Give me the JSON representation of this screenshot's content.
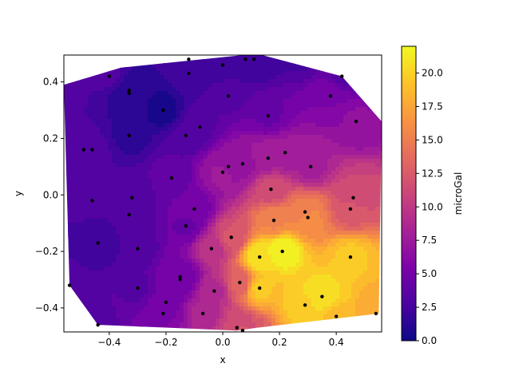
{
  "chart_data": {
    "type": "contour",
    "title": "",
    "xlabel": "x",
    "ylabel": "y",
    "xlim": [
      -0.56,
      0.56
    ],
    "ylim": [
      -0.485,
      0.495
    ],
    "xticks": [
      -0.4,
      -0.2,
      0.0,
      0.2,
      0.4
    ],
    "xtick_labels": [
      "−0.4",
      "−0.2",
      "0.0",
      "0.2",
      "0.4"
    ],
    "yticks": [
      -0.4,
      -0.2,
      0.0,
      0.2,
      0.4
    ],
    "ytick_labels": [
      "−0.4",
      "−0.2",
      "0.0",
      "0.2",
      "0.4"
    ],
    "colormap": "plasma",
    "colorbar": {
      "label": "microGal",
      "range": [
        0.0,
        22.0
      ],
      "ticks": [
        0.0,
        2.5,
        5.0,
        7.5,
        10.0,
        12.5,
        15.0,
        17.5,
        20.0
      ],
      "tick_labels": [
        "0.0",
        "2.5",
        "5.0",
        "7.5",
        "10.0",
        "12.5",
        "15.0",
        "17.5",
        "20.0"
      ]
    },
    "grid": false,
    "hull": [
      [
        -0.56,
        0.39
      ],
      [
        -0.36,
        0.45
      ],
      [
        0.12,
        0.5
      ],
      [
        0.42,
        0.42
      ],
      [
        0.56,
        0.26
      ],
      [
        0.55,
        -0.42
      ],
      [
        0.12,
        -0.47
      ],
      [
        0.05,
        -0.48
      ],
      [
        -0.44,
        -0.46
      ],
      [
        -0.54,
        -0.32
      ],
      [
        -0.56,
        0.39
      ]
    ],
    "stations": [
      {
        "x": -0.57,
        "y": 0.4,
        "g": 3.5
      },
      {
        "x": -0.4,
        "y": 0.42,
        "g": 3.0
      },
      {
        "x": -0.12,
        "y": 0.48,
        "g": 2.5
      },
      {
        "x": 0.0,
        "y": 0.46,
        "g": 2.0
      },
      {
        "x": 0.08,
        "y": 0.48,
        "g": 2.0
      },
      {
        "x": 0.11,
        "y": 0.48,
        "g": 2.0
      },
      {
        "x": 0.28,
        "y": 0.5,
        "g": 2.5
      },
      {
        "x": 0.42,
        "y": 0.42,
        "g": 3.5
      },
      {
        "x": 0.38,
        "y": 0.35,
        "g": 5.5
      },
      {
        "x": 0.47,
        "y": 0.26,
        "g": 6.5
      },
      {
        "x": -0.12,
        "y": 0.43,
        "g": 2.0
      },
      {
        "x": -0.33,
        "y": 0.37,
        "g": 1.5
      },
      {
        "x": -0.33,
        "y": 0.36,
        "g": 1.0
      },
      {
        "x": -0.21,
        "y": 0.3,
        "g": 0.5
      },
      {
        "x": 0.02,
        "y": 0.35,
        "g": 3.5
      },
      {
        "x": 0.16,
        "y": 0.28,
        "g": 4.5
      },
      {
        "x": -0.08,
        "y": 0.24,
        "g": 3.5
      },
      {
        "x": -0.13,
        "y": 0.21,
        "g": 3.0
      },
      {
        "x": -0.33,
        "y": 0.21,
        "g": 1.5
      },
      {
        "x": -0.49,
        "y": 0.16,
        "g": 3.0
      },
      {
        "x": -0.46,
        "y": 0.16,
        "g": 3.0
      },
      {
        "x": 0.07,
        "y": 0.11,
        "g": 7.0
      },
      {
        "x": 0.16,
        "y": 0.13,
        "g": 8.0
      },
      {
        "x": 0.22,
        "y": 0.15,
        "g": 7.5
      },
      {
        "x": 0.31,
        "y": 0.1,
        "g": 8.0
      },
      {
        "x": -0.0,
        "y": 0.08,
        "g": 7.5
      },
      {
        "x": 0.02,
        "y": 0.1,
        "g": 7.0
      },
      {
        "x": -0.18,
        "y": 0.06,
        "g": 4.0
      },
      {
        "x": -0.32,
        "y": -0.01,
        "g": 3.0
      },
      {
        "x": -0.46,
        "y": -0.02,
        "g": 3.0
      },
      {
        "x": 0.17,
        "y": 0.02,
        "g": 11.5
      },
      {
        "x": 0.46,
        "y": -0.01,
        "g": 11.0
      },
      {
        "x": -0.1,
        "y": -0.05,
        "g": 5.0
      },
      {
        "x": -0.33,
        "y": -0.07,
        "g": 3.0
      },
      {
        "x": 0.29,
        "y": -0.06,
        "g": 15.0
      },
      {
        "x": 0.3,
        "y": -0.08,
        "g": 16.0
      },
      {
        "x": 0.45,
        "y": -0.05,
        "g": 12.5
      },
      {
        "x": 0.18,
        "y": -0.09,
        "g": 15.5
      },
      {
        "x": -0.13,
        "y": -0.11,
        "g": 4.5
      },
      {
        "x": 0.03,
        "y": -0.15,
        "g": 12.0
      },
      {
        "x": -0.44,
        "y": -0.17,
        "g": 2.0
      },
      {
        "x": -0.3,
        "y": -0.19,
        "g": 3.0
      },
      {
        "x": -0.04,
        "y": -0.19,
        "g": 9.5
      },
      {
        "x": 0.21,
        "y": -0.2,
        "g": 22.0
      },
      {
        "x": 0.13,
        "y": -0.22,
        "g": 21.0
      },
      {
        "x": 0.45,
        "y": -0.22,
        "g": 19.5
      },
      {
        "x": -0.15,
        "y": -0.29,
        "g": 5.0
      },
      {
        "x": -0.15,
        "y": -0.3,
        "g": 5.0
      },
      {
        "x": 0.06,
        "y": -0.31,
        "g": 13.0
      },
      {
        "x": 0.13,
        "y": -0.33,
        "g": 19.5
      },
      {
        "x": -0.3,
        "y": -0.33,
        "g": 3.5
      },
      {
        "x": -0.03,
        "y": -0.34,
        "g": 9.0
      },
      {
        "x": -0.54,
        "y": -0.32,
        "g": 3.0
      },
      {
        "x": 0.35,
        "y": -0.36,
        "g": 21.0
      },
      {
        "x": -0.2,
        "y": -0.38,
        "g": 5.0
      },
      {
        "x": 0.29,
        "y": -0.39,
        "g": 20.0
      },
      {
        "x": -0.07,
        "y": -0.42,
        "g": 8.5
      },
      {
        "x": -0.21,
        "y": -0.42,
        "g": 5.5
      },
      {
        "x": 0.4,
        "y": -0.43,
        "g": 19.0
      },
      {
        "x": 0.54,
        "y": -0.42,
        "g": 17.5
      },
      {
        "x": -0.44,
        "y": -0.46,
        "g": 3.5
      },
      {
        "x": 0.05,
        "y": -0.47,
        "g": 11.0
      },
      {
        "x": 0.07,
        "y": -0.48,
        "g": 12.0
      }
    ]
  }
}
